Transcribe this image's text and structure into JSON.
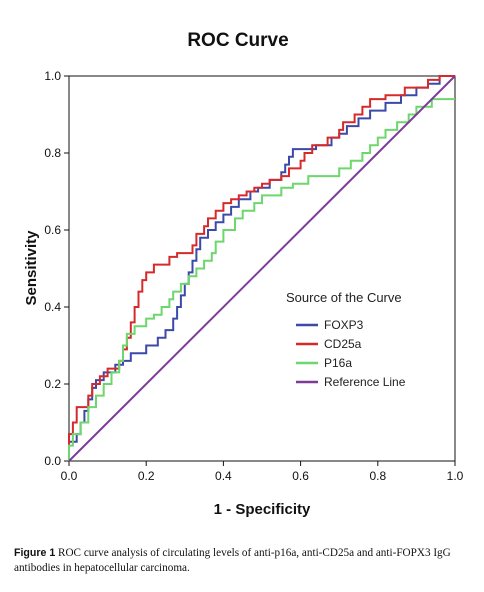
{
  "chart_data": {
    "type": "line",
    "title": "ROC Curve",
    "xlabel": "1 - Specificity",
    "ylabel": "Sensitivity",
    "xlim": [
      0,
      1
    ],
    "ylim": [
      0,
      1
    ],
    "xticks": [
      "0.0",
      "0.2",
      "0.4",
      "0.6",
      "0.8",
      "1.0"
    ],
    "yticks": [
      "0.0",
      "0.2",
      "0.4",
      "0.6",
      "0.8",
      "1.0"
    ],
    "grid": false,
    "legend": {
      "title": "Source of the Curve",
      "placement": "lower-right"
    },
    "series": [
      {
        "name": "FOXP3",
        "color": "#3b4aa8",
        "points": [
          [
            0,
            0
          ],
          [
            0,
            0.05
          ],
          [
            0.01,
            0.05
          ],
          [
            0.02,
            0.05
          ],
          [
            0.02,
            0.07
          ],
          [
            0.03,
            0.07
          ],
          [
            0.03,
            0.1
          ],
          [
            0.04,
            0.1
          ],
          [
            0.04,
            0.13
          ],
          [
            0.05,
            0.13
          ],
          [
            0.05,
            0.16
          ],
          [
            0.06,
            0.16
          ],
          [
            0.06,
            0.19
          ],
          [
            0.07,
            0.19
          ],
          [
            0.07,
            0.21
          ],
          [
            0.09,
            0.21
          ],
          [
            0.09,
            0.23
          ],
          [
            0.12,
            0.23
          ],
          [
            0.12,
            0.25
          ],
          [
            0.14,
            0.25
          ],
          [
            0.14,
            0.26
          ],
          [
            0.16,
            0.26
          ],
          [
            0.16,
            0.28
          ],
          [
            0.2,
            0.28
          ],
          [
            0.2,
            0.3
          ],
          [
            0.23,
            0.3
          ],
          [
            0.23,
            0.32
          ],
          [
            0.25,
            0.32
          ],
          [
            0.25,
            0.34
          ],
          [
            0.27,
            0.34
          ],
          [
            0.27,
            0.37
          ],
          [
            0.28,
            0.37
          ],
          [
            0.28,
            0.4
          ],
          [
            0.29,
            0.4
          ],
          [
            0.29,
            0.43
          ],
          [
            0.3,
            0.43
          ],
          [
            0.3,
            0.46
          ],
          [
            0.31,
            0.46
          ],
          [
            0.31,
            0.49
          ],
          [
            0.32,
            0.49
          ],
          [
            0.32,
            0.52
          ],
          [
            0.33,
            0.52
          ],
          [
            0.33,
            0.55
          ],
          [
            0.34,
            0.55
          ],
          [
            0.34,
            0.58
          ],
          [
            0.36,
            0.58
          ],
          [
            0.36,
            0.6
          ],
          [
            0.38,
            0.6
          ],
          [
            0.38,
            0.62
          ],
          [
            0.4,
            0.62
          ],
          [
            0.4,
            0.64
          ],
          [
            0.42,
            0.64
          ],
          [
            0.42,
            0.66
          ],
          [
            0.44,
            0.66
          ],
          [
            0.44,
            0.68
          ],
          [
            0.47,
            0.68
          ],
          [
            0.47,
            0.7
          ],
          [
            0.49,
            0.7
          ],
          [
            0.49,
            0.71
          ],
          [
            0.52,
            0.71
          ],
          [
            0.52,
            0.73
          ],
          [
            0.55,
            0.73
          ],
          [
            0.55,
            0.75
          ],
          [
            0.56,
            0.75
          ],
          [
            0.56,
            0.77
          ],
          [
            0.57,
            0.77
          ],
          [
            0.57,
            0.79
          ],
          [
            0.58,
            0.79
          ],
          [
            0.58,
            0.81
          ],
          [
            0.64,
            0.81
          ],
          [
            0.64,
            0.82
          ],
          [
            0.68,
            0.82
          ],
          [
            0.68,
            0.84
          ],
          [
            0.7,
            0.84
          ],
          [
            0.7,
            0.85
          ],
          [
            0.72,
            0.85
          ],
          [
            0.72,
            0.87
          ],
          [
            0.75,
            0.87
          ],
          [
            0.75,
            0.89
          ],
          [
            0.78,
            0.89
          ],
          [
            0.78,
            0.91
          ],
          [
            0.82,
            0.91
          ],
          [
            0.82,
            0.93
          ],
          [
            0.86,
            0.93
          ],
          [
            0.86,
            0.95
          ],
          [
            0.9,
            0.95
          ],
          [
            0.9,
            0.97
          ],
          [
            0.93,
            0.97
          ],
          [
            0.93,
            0.98
          ],
          [
            0.96,
            0.98
          ],
          [
            0.96,
            1.0
          ],
          [
            1.0,
            1.0
          ]
        ]
      },
      {
        "name": "CD25a",
        "color": "#d62a2a",
        "points": [
          [
            0,
            0
          ],
          [
            0,
            0.07
          ],
          [
            0.01,
            0.07
          ],
          [
            0.01,
            0.1
          ],
          [
            0.02,
            0.1
          ],
          [
            0.02,
            0.14
          ],
          [
            0.05,
            0.14
          ],
          [
            0.05,
            0.17
          ],
          [
            0.06,
            0.17
          ],
          [
            0.06,
            0.2
          ],
          [
            0.08,
            0.2
          ],
          [
            0.08,
            0.22
          ],
          [
            0.1,
            0.22
          ],
          [
            0.1,
            0.24
          ],
          [
            0.13,
            0.24
          ],
          [
            0.13,
            0.26
          ],
          [
            0.14,
            0.26
          ],
          [
            0.14,
            0.29
          ],
          [
            0.15,
            0.29
          ],
          [
            0.15,
            0.32
          ],
          [
            0.16,
            0.32
          ],
          [
            0.16,
            0.36
          ],
          [
            0.17,
            0.36
          ],
          [
            0.17,
            0.4
          ],
          [
            0.18,
            0.4
          ],
          [
            0.18,
            0.44
          ],
          [
            0.19,
            0.44
          ],
          [
            0.19,
            0.47
          ],
          [
            0.2,
            0.47
          ],
          [
            0.2,
            0.49
          ],
          [
            0.22,
            0.49
          ],
          [
            0.22,
            0.51
          ],
          [
            0.26,
            0.51
          ],
          [
            0.26,
            0.53
          ],
          [
            0.28,
            0.53
          ],
          [
            0.28,
            0.54
          ],
          [
            0.32,
            0.54
          ],
          [
            0.32,
            0.56
          ],
          [
            0.33,
            0.56
          ],
          [
            0.33,
            0.59
          ],
          [
            0.35,
            0.59
          ],
          [
            0.35,
            0.61
          ],
          [
            0.36,
            0.61
          ],
          [
            0.36,
            0.63
          ],
          [
            0.38,
            0.63
          ],
          [
            0.38,
            0.65
          ],
          [
            0.4,
            0.65
          ],
          [
            0.4,
            0.67
          ],
          [
            0.42,
            0.67
          ],
          [
            0.42,
            0.68
          ],
          [
            0.44,
            0.68
          ],
          [
            0.44,
            0.69
          ],
          [
            0.46,
            0.69
          ],
          [
            0.46,
            0.7
          ],
          [
            0.48,
            0.7
          ],
          [
            0.48,
            0.71
          ],
          [
            0.5,
            0.71
          ],
          [
            0.5,
            0.72
          ],
          [
            0.52,
            0.72
          ],
          [
            0.52,
            0.73
          ],
          [
            0.55,
            0.73
          ],
          [
            0.55,
            0.74
          ],
          [
            0.57,
            0.74
          ],
          [
            0.57,
            0.76
          ],
          [
            0.6,
            0.76
          ],
          [
            0.6,
            0.78
          ],
          [
            0.61,
            0.78
          ],
          [
            0.61,
            0.8
          ],
          [
            0.63,
            0.8
          ],
          [
            0.63,
            0.82
          ],
          [
            0.67,
            0.82
          ],
          [
            0.67,
            0.84
          ],
          [
            0.7,
            0.84
          ],
          [
            0.7,
            0.86
          ],
          [
            0.71,
            0.86
          ],
          [
            0.71,
            0.88
          ],
          [
            0.74,
            0.88
          ],
          [
            0.74,
            0.9
          ],
          [
            0.76,
            0.9
          ],
          [
            0.76,
            0.92
          ],
          [
            0.78,
            0.92
          ],
          [
            0.78,
            0.94
          ],
          [
            0.82,
            0.94
          ],
          [
            0.82,
            0.95
          ],
          [
            0.87,
            0.95
          ],
          [
            0.87,
            0.97
          ],
          [
            0.93,
            0.97
          ],
          [
            0.93,
            0.99
          ],
          [
            0.96,
            0.99
          ],
          [
            0.96,
            1.0
          ],
          [
            1.0,
            1.0
          ]
        ]
      },
      {
        "name": "P16a",
        "color": "#6dd66d",
        "points": [
          [
            0,
            0
          ],
          [
            0,
            0.04
          ],
          [
            0.01,
            0.04
          ],
          [
            0.01,
            0.07
          ],
          [
            0.03,
            0.07
          ],
          [
            0.03,
            0.1
          ],
          [
            0.05,
            0.1
          ],
          [
            0.05,
            0.14
          ],
          [
            0.07,
            0.14
          ],
          [
            0.07,
            0.17
          ],
          [
            0.09,
            0.17
          ],
          [
            0.09,
            0.2
          ],
          [
            0.11,
            0.2
          ],
          [
            0.11,
            0.23
          ],
          [
            0.13,
            0.23
          ],
          [
            0.13,
            0.26
          ],
          [
            0.14,
            0.26
          ],
          [
            0.14,
            0.3
          ],
          [
            0.15,
            0.3
          ],
          [
            0.15,
            0.33
          ],
          [
            0.17,
            0.33
          ],
          [
            0.17,
            0.35
          ],
          [
            0.2,
            0.35
          ],
          [
            0.2,
            0.37
          ],
          [
            0.22,
            0.37
          ],
          [
            0.22,
            0.38
          ],
          [
            0.24,
            0.38
          ],
          [
            0.24,
            0.4
          ],
          [
            0.26,
            0.4
          ],
          [
            0.26,
            0.42
          ],
          [
            0.27,
            0.42
          ],
          [
            0.27,
            0.44
          ],
          [
            0.29,
            0.44
          ],
          [
            0.29,
            0.46
          ],
          [
            0.31,
            0.46
          ],
          [
            0.31,
            0.48
          ],
          [
            0.33,
            0.48
          ],
          [
            0.33,
            0.5
          ],
          [
            0.35,
            0.5
          ],
          [
            0.35,
            0.52
          ],
          [
            0.37,
            0.52
          ],
          [
            0.37,
            0.54
          ],
          [
            0.38,
            0.54
          ],
          [
            0.38,
            0.57
          ],
          [
            0.4,
            0.57
          ],
          [
            0.4,
            0.6
          ],
          [
            0.43,
            0.6
          ],
          [
            0.43,
            0.63
          ],
          [
            0.45,
            0.63
          ],
          [
            0.45,
            0.65
          ],
          [
            0.48,
            0.65
          ],
          [
            0.48,
            0.67
          ],
          [
            0.5,
            0.67
          ],
          [
            0.5,
            0.69
          ],
          [
            0.55,
            0.69
          ],
          [
            0.55,
            0.71
          ],
          [
            0.58,
            0.71
          ],
          [
            0.58,
            0.72
          ],
          [
            0.62,
            0.72
          ],
          [
            0.62,
            0.74
          ],
          [
            0.7,
            0.74
          ],
          [
            0.7,
            0.76
          ],
          [
            0.73,
            0.76
          ],
          [
            0.73,
            0.78
          ],
          [
            0.76,
            0.78
          ],
          [
            0.76,
            0.8
          ],
          [
            0.78,
            0.8
          ],
          [
            0.78,
            0.82
          ],
          [
            0.8,
            0.82
          ],
          [
            0.8,
            0.84
          ],
          [
            0.82,
            0.84
          ],
          [
            0.82,
            0.86
          ],
          [
            0.85,
            0.86
          ],
          [
            0.85,
            0.88
          ],
          [
            0.88,
            0.88
          ],
          [
            0.88,
            0.9
          ],
          [
            0.9,
            0.9
          ],
          [
            0.9,
            0.92
          ],
          [
            0.94,
            0.92
          ],
          [
            0.94,
            0.94
          ],
          [
            1.0,
            0.94
          ]
        ]
      },
      {
        "name": "Reference Line",
        "color": "#7d3c98",
        "points": [
          [
            0,
            0
          ],
          [
            1,
            1
          ]
        ]
      }
    ]
  },
  "caption": {
    "label": "Figure 1",
    "text": "ROC curve analysis of circulating levels of anti-p16a, anti-CD25a and anti-FOPX3 IgG antibodies in hepatocellular carcinoma."
  }
}
